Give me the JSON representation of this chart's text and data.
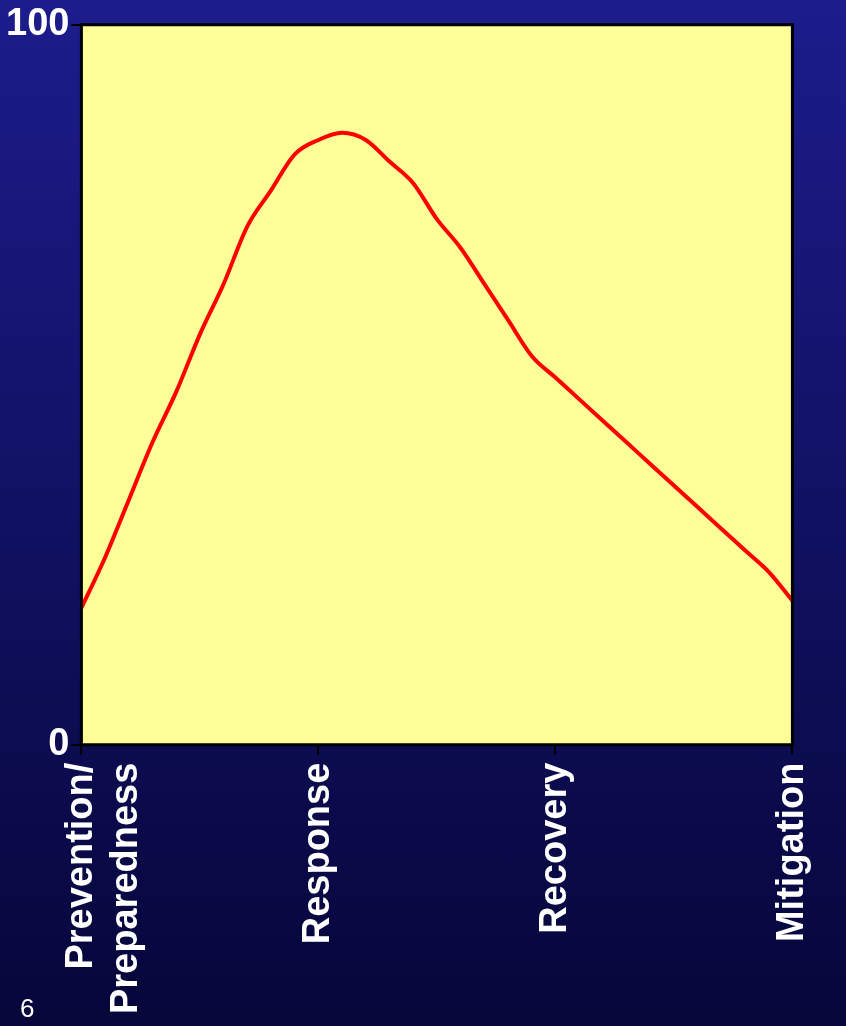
{
  "chart_data": {
    "type": "line",
    "categories": [
      "Prevention/\nPreparedness",
      null,
      null,
      null,
      null,
      null,
      null,
      null,
      null,
      null,
      "Response",
      null,
      null,
      null,
      null,
      null,
      null,
      null,
      null,
      null,
      "Recovery",
      null,
      null,
      null,
      null,
      null,
      null,
      null,
      null,
      null,
      "Mitigation"
    ],
    "series": [
      {
        "color": "#ff0000",
        "values": [
          19,
          26,
          34,
          42,
          49,
          57,
          64,
          72,
          77,
          82,
          84,
          85,
          84,
          81,
          78,
          73,
          69,
          64,
          59,
          54,
          51,
          48,
          45,
          42,
          39,
          36,
          33,
          30,
          27,
          24,
          20
        ]
      }
    ],
    "ylim": [
      0,
      100
    ],
    "yticks": [
      0,
      100
    ],
    "grid": false,
    "legend": false,
    "marker": "none",
    "line_style": "solid",
    "annotations": [
      "6"
    ]
  }
}
